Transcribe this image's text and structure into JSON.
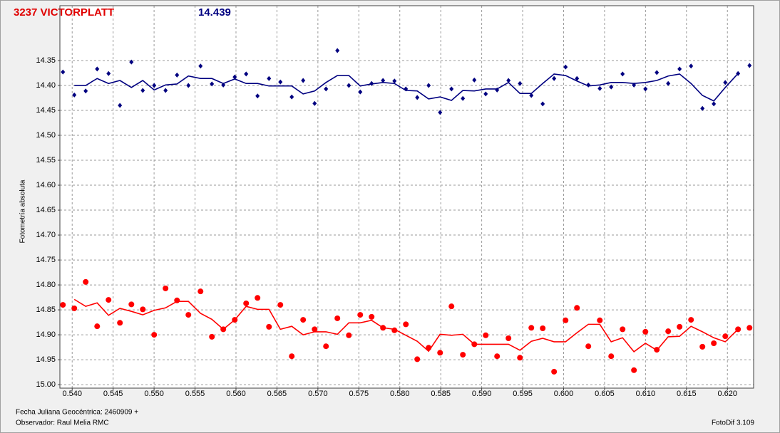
{
  "chart_data": {
    "type": "scatter",
    "title": "3237 VICTORPLATT",
    "magnitude": "14.439",
    "y_label": "Fotometría absoluta",
    "footer_date": "Fecha Juliana Geocéntrica: 2460909 +",
    "footer_observer": "Observador: Raul Melia RMC",
    "footer_software": "FotoDif 3.109",
    "grid": true,
    "y_inverted": true,
    "xlim": [
      0.5385,
      0.6232
    ],
    "ylim": [
      14.24,
      15.007
    ],
    "xticks": [
      {
        "value": 0.54,
        "label": "0.540"
      },
      0.545,
      {
        "value": 0.55,
        "label": "0.550"
      },
      0.555,
      {
        "value": 0.56,
        "label": "0.560"
      },
      0.565,
      {
        "value": 0.57,
        "label": "0.570"
      },
      0.575,
      {
        "value": 0.58,
        "label": "0.580"
      },
      0.585,
      {
        "value": 0.59,
        "label": "0.590"
      },
      0.595,
      {
        "value": 0.6,
        "label": "0.600"
      },
      0.605,
      {
        "value": 0.61,
        "label": "0.610"
      },
      0.615,
      {
        "value": 0.62,
        "label": "0.620"
      }
    ],
    "yticks": [
      14.35,
      {
        "value": 14.4,
        "label": "14.40"
      },
      14.45,
      {
        "value": 14.5,
        "label": "14.50"
      },
      14.55,
      {
        "value": 14.6,
        "label": "14.60"
      },
      14.65,
      {
        "value": 14.7,
        "label": "14.70"
      },
      14.75,
      {
        "value": 14.8,
        "label": "14.80"
      },
      14.85,
      {
        "value": 14.9,
        "label": "14.90"
      },
      14.95,
      {
        "value": 15.0,
        "label": "15.00"
      }
    ],
    "x": [
      0.53887,
      0.54026,
      0.54165,
      0.54305,
      0.54444,
      0.54583,
      0.54723,
      0.54862,
      0.55001,
      0.5514,
      0.5528,
      0.55419,
      0.55567,
      0.55706,
      0.55845,
      0.55985,
      0.56124,
      0.56263,
      0.56403,
      0.56542,
      0.56681,
      0.5682,
      0.5696,
      0.57099,
      0.57238,
      0.57378,
      0.57517,
      0.57656,
      0.57795,
      0.57935,
      0.58074,
      0.58213,
      0.58352,
      0.58492,
      0.58631,
      0.5877,
      0.5891,
      0.59049,
      0.59188,
      0.59327,
      0.59467,
      0.59606,
      0.59745,
      0.59884,
      0.60024,
      0.60163,
      0.60302,
      0.60442,
      0.60581,
      0.6072,
      0.60859,
      0.60999,
      0.61138,
      0.61277,
      0.61416,
      0.61556,
      0.61695,
      0.61834,
      0.61974,
      0.6213,
      0.6227
    ],
    "series": [
      {
        "color": "#000080",
        "marker": "diamond",
        "values": [
          14.373,
          14.419,
          14.411,
          14.367,
          14.376,
          14.44,
          14.353,
          14.41,
          14.4,
          14.41,
          14.379,
          14.4,
          14.361,
          14.397,
          14.399,
          14.383,
          14.377,
          14.421,
          14.386,
          14.393,
          14.423,
          14.39,
          14.436,
          14.407,
          14.33,
          14.4,
          14.413,
          14.396,
          14.39,
          14.391,
          14.407,
          14.424,
          14.4,
          14.454,
          14.407,
          14.426,
          14.389,
          14.417,
          14.409,
          14.39,
          14.396,
          14.42,
          14.437,
          14.386,
          14.363,
          14.386,
          14.399,
          14.406,
          14.403,
          14.377,
          14.399,
          14.407,
          14.374,
          14.396,
          14.367,
          14.361,
          14.446,
          14.437,
          14.394,
          14.376,
          14.36
        ],
        "line_values": [
          null,
          14.4,
          14.4,
          14.386,
          14.396,
          14.39,
          14.404,
          14.39,
          14.409,
          14.399,
          14.397,
          14.381,
          14.386,
          14.386,
          14.396,
          14.387,
          14.396,
          14.396,
          14.401,
          14.401,
          14.401,
          14.417,
          14.411,
          14.394,
          14.38,
          14.38,
          14.401,
          14.397,
          14.394,
          14.396,
          14.41,
          14.411,
          14.427,
          14.423,
          14.43,
          14.41,
          14.411,
          14.407,
          14.407,
          14.394,
          14.416,
          14.416,
          14.396,
          14.377,
          14.38,
          14.391,
          14.401,
          14.399,
          14.394,
          14.394,
          14.396,
          14.394,
          14.39,
          14.381,
          14.377,
          14.396,
          14.42,
          14.431,
          14.404,
          14.376,
          null
        ]
      },
      {
        "color": "#ff0000",
        "marker": "circle",
        "values": [
          14.84,
          14.847,
          14.794,
          14.883,
          14.83,
          14.876,
          14.839,
          14.849,
          14.9,
          14.807,
          14.831,
          14.86,
          14.813,
          14.904,
          14.889,
          14.87,
          14.837,
          14.826,
          14.884,
          14.84,
          14.943,
          14.87,
          14.889,
          14.923,
          14.867,
          14.901,
          14.86,
          14.864,
          14.886,
          14.891,
          14.879,
          14.949,
          14.926,
          14.936,
          14.843,
          14.94,
          14.919,
          14.901,
          14.943,
          14.907,
          14.946,
          14.886,
          14.887,
          14.974,
          14.871,
          14.846,
          14.923,
          14.871,
          14.943,
          14.889,
          14.971,
          14.894,
          14.93,
          14.893,
          14.884,
          14.87,
          14.924,
          14.917,
          14.903,
          14.889,
          14.886
        ],
        "line_values": [
          null,
          14.829,
          14.843,
          14.836,
          14.861,
          14.847,
          14.853,
          14.86,
          14.851,
          14.846,
          14.833,
          14.833,
          14.857,
          14.869,
          14.889,
          14.87,
          14.843,
          14.849,
          14.849,
          14.889,
          14.883,
          14.9,
          14.894,
          14.894,
          14.899,
          14.876,
          14.876,
          14.871,
          14.886,
          14.889,
          14.901,
          14.913,
          14.933,
          14.899,
          14.901,
          14.899,
          14.919,
          14.919,
          14.919,
          14.919,
          14.931,
          14.913,
          14.907,
          14.914,
          14.914,
          14.896,
          14.879,
          14.879,
          14.914,
          14.906,
          14.934,
          14.917,
          14.931,
          14.904,
          14.903,
          14.883,
          14.894,
          14.906,
          14.914,
          14.889,
          null
        ]
      }
    ]
  }
}
